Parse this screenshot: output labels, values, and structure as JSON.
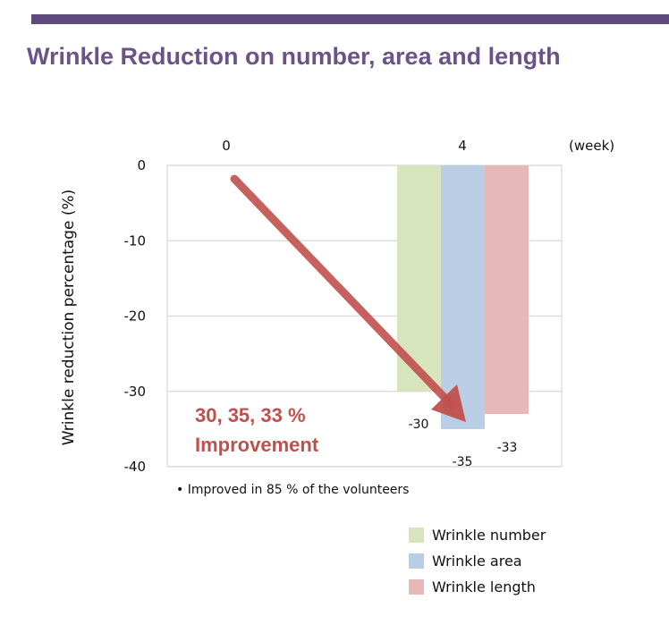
{
  "title": "Wrinkle Reduction on number, area and length",
  "note": "Improved in 85 % of the volunteers",
  "annotation": {
    "line1": "30, 35, 33 %",
    "line2": "Improvement"
  },
  "colors": {
    "bar": "#5f4a7d",
    "title": "#6b5388",
    "arrow": "#c0504d",
    "series": [
      "#d7e4bd",
      "#b9cde5",
      "#e6b9b8"
    ]
  },
  "chart_data": {
    "type": "bar",
    "categories": [
      "0",
      "4"
    ],
    "x_unit_label": "(week)",
    "ylabel": "Wrinkle reduction  percentage (%)",
    "ylim": [
      -40,
      0
    ],
    "yticks": [
      0,
      -10,
      -20,
      -30,
      -40
    ],
    "grid": true,
    "legend_position": "bottom-right",
    "series": [
      {
        "name": "Wrinkle number",
        "values": [
          null,
          -30
        ],
        "data_label": "-30"
      },
      {
        "name": "Wrinkle area",
        "values": [
          null,
          -35
        ],
        "data_label": "-35"
      },
      {
        "name": "Wrinkle length",
        "values": [
          null,
          -33
        ],
        "data_label": "-33"
      }
    ]
  }
}
